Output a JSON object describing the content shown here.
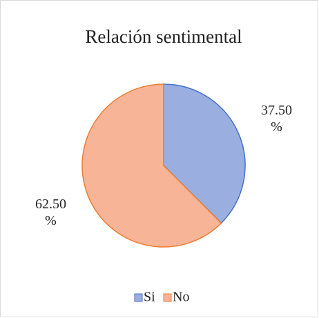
{
  "chart_data": {
    "type": "pie",
    "title": "Relación sentimental",
    "categories": [
      "Si",
      "No"
    ],
    "values": [
      37.5,
      62.5
    ],
    "value_labels": [
      "37.50%",
      "62.50%"
    ],
    "colors": [
      "#9aaee0",
      "#f7b497"
    ],
    "edgecolors": [
      "#4472c4",
      "#ed7d31"
    ],
    "legend": "bottom"
  }
}
